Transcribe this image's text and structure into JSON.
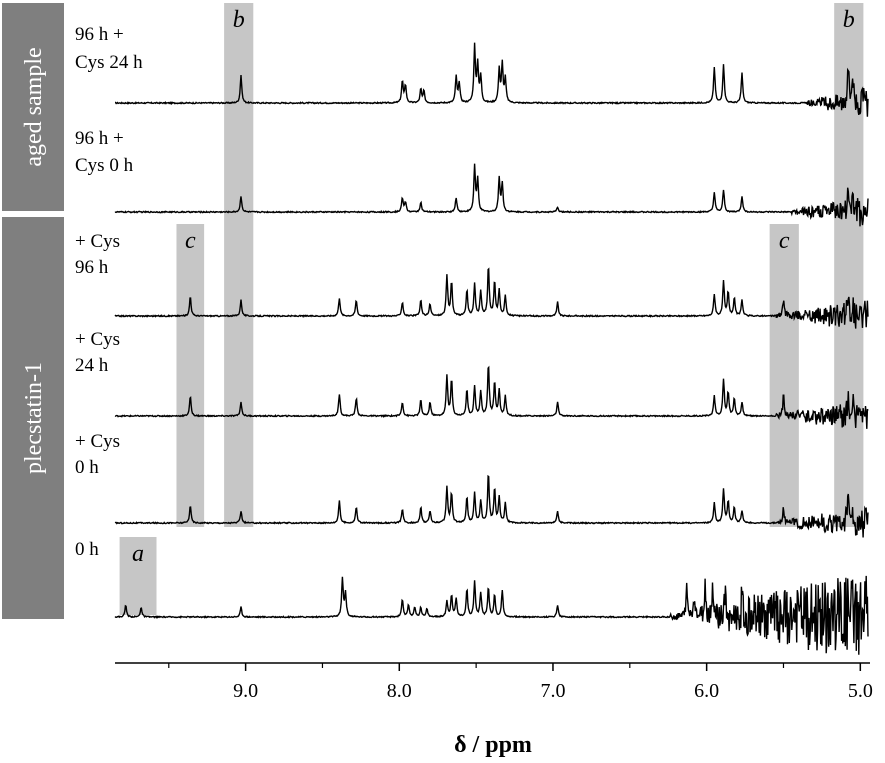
{
  "chart_data": {
    "type": "line",
    "xlabel": "δ / ppm",
    "xlim": [
      9.85,
      4.95
    ],
    "x_reversed": true,
    "x_ticks": [
      {
        "value": 9.0,
        "label": "9.0"
      },
      {
        "value": 8.0,
        "label": "8.0"
      },
      {
        "value": 7.0,
        "label": "7.0"
      },
      {
        "value": 6.0,
        "label": "6.0"
      },
      {
        "value": 5.0,
        "label": "5.0"
      }
    ],
    "groups": [
      {
        "label": "aged sample",
        "series": [
          "96 h + Cys 24 h",
          "96 h + Cys 0 h"
        ],
        "color": "#7f7f7f"
      },
      {
        "label": "plecstatin-1",
        "series": [
          "+ Cys 96 h",
          "+ Cys 24 h",
          "+ Cys 0 h",
          "0 h"
        ],
        "color": "#7f7f7f"
      }
    ],
    "highlights": [
      {
        "label": "a",
        "from": 9.82,
        "to": 9.58
      },
      {
        "label": "b",
        "from": 9.14,
        "to": 8.95
      },
      {
        "label": "b",
        "from": 5.17,
        "to": 4.98
      },
      {
        "label": "c",
        "from": 9.45,
        "to": 9.27
      },
      {
        "label": "c",
        "from": 5.59,
        "to": 5.4
      }
    ],
    "series": [
      {
        "name": "96 h + Cys 24 h",
        "label_lines": [
          "96 h +",
          "Cys 24 h"
        ],
        "noise_from": 5.35,
        "peaks": [
          [
            9.03,
            28
          ],
          [
            7.98,
            22
          ],
          [
            7.96,
            18
          ],
          [
            7.86,
            14
          ],
          [
            7.84,
            12
          ],
          [
            7.63,
            26
          ],
          [
            7.61,
            20
          ],
          [
            7.51,
            56
          ],
          [
            7.49,
            38
          ],
          [
            7.47,
            26
          ],
          [
            7.35,
            34
          ],
          [
            7.33,
            38
          ],
          [
            7.31,
            24
          ],
          [
            5.95,
            36
          ],
          [
            5.89,
            38
          ],
          [
            5.77,
            30
          ],
          [
            5.08,
            40
          ],
          [
            5.05,
            30
          ]
        ]
      },
      {
        "name": "96 h + Cys 0 h",
        "label_lines": [
          "96 h +",
          "Cys 0 h"
        ],
        "noise_from": 5.45,
        "peaks": [
          [
            9.03,
            16
          ],
          [
            7.98,
            14
          ],
          [
            7.96,
            10
          ],
          [
            7.86,
            10
          ],
          [
            7.63,
            14
          ],
          [
            7.51,
            46
          ],
          [
            7.49,
            32
          ],
          [
            7.35,
            34
          ],
          [
            7.33,
            28
          ],
          [
            6.97,
            5
          ],
          [
            5.95,
            20
          ],
          [
            5.89,
            22
          ],
          [
            5.77,
            16
          ],
          [
            5.08,
            22
          ],
          [
            5.05,
            16
          ]
        ]
      },
      {
        "name": "+ Cys 96 h",
        "label_lines": [
          "+ Cys",
          "96 h"
        ],
        "noise_from": 5.55,
        "peaks": [
          [
            9.36,
            20
          ],
          [
            9.03,
            16
          ],
          [
            8.39,
            18
          ],
          [
            8.28,
            16
          ],
          [
            7.98,
            14
          ],
          [
            7.86,
            16
          ],
          [
            7.8,
            12
          ],
          [
            7.69,
            40
          ],
          [
            7.66,
            34
          ],
          [
            7.56,
            26
          ],
          [
            7.51,
            32
          ],
          [
            7.47,
            24
          ],
          [
            7.42,
            50
          ],
          [
            7.38,
            34
          ],
          [
            7.35,
            26
          ],
          [
            7.31,
            20
          ],
          [
            6.97,
            14
          ],
          [
            5.95,
            22
          ],
          [
            5.89,
            34
          ],
          [
            5.86,
            24
          ],
          [
            5.82,
            18
          ],
          [
            5.77,
            16
          ],
          [
            5.5,
            16
          ],
          [
            5.08,
            20
          ],
          [
            5.05,
            14
          ]
        ]
      },
      {
        "name": "+ Cys 24 h",
        "label_lines": [
          "+ Cys",
          "24 h"
        ],
        "noise_from": 5.55,
        "peaks": [
          [
            9.36,
            20
          ],
          [
            9.03,
            14
          ],
          [
            8.39,
            22
          ],
          [
            8.28,
            18
          ],
          [
            7.98,
            14
          ],
          [
            7.86,
            16
          ],
          [
            7.8,
            14
          ],
          [
            7.69,
            40
          ],
          [
            7.66,
            36
          ],
          [
            7.56,
            26
          ],
          [
            7.51,
            30
          ],
          [
            7.47,
            24
          ],
          [
            7.42,
            52
          ],
          [
            7.38,
            34
          ],
          [
            7.35,
            26
          ],
          [
            7.31,
            20
          ],
          [
            6.97,
            14
          ],
          [
            5.95,
            20
          ],
          [
            5.89,
            36
          ],
          [
            5.86,
            24
          ],
          [
            5.82,
            18
          ],
          [
            5.77,
            14
          ],
          [
            5.5,
            20
          ],
          [
            5.08,
            22
          ],
          [
            5.05,
            14
          ]
        ]
      },
      {
        "name": "+ Cys 0 h",
        "label_lines": [
          "+ Cys",
          "0 h"
        ],
        "noise_from": 5.55,
        "peaks": [
          [
            9.36,
            18
          ],
          [
            9.03,
            12
          ],
          [
            8.39,
            22
          ],
          [
            8.28,
            16
          ],
          [
            7.98,
            14
          ],
          [
            7.86,
            16
          ],
          [
            7.8,
            12
          ],
          [
            7.69,
            36
          ],
          [
            7.66,
            30
          ],
          [
            7.56,
            26
          ],
          [
            7.51,
            30
          ],
          [
            7.47,
            22
          ],
          [
            7.42,
            50
          ],
          [
            7.38,
            34
          ],
          [
            7.35,
            26
          ],
          [
            7.31,
            20
          ],
          [
            6.97,
            12
          ],
          [
            5.95,
            20
          ],
          [
            5.89,
            34
          ],
          [
            5.86,
            22
          ],
          [
            5.82,
            16
          ],
          [
            5.77,
            12
          ],
          [
            5.5,
            16
          ],
          [
            5.08,
            20
          ],
          [
            5.05,
            14
          ]
        ]
      },
      {
        "name": "0 h",
        "label_lines": [
          "0 h"
        ],
        "noise_from": 6.25,
        "peaks": [
          [
            9.78,
            12
          ],
          [
            9.68,
            10
          ],
          [
            9.03,
            10
          ],
          [
            8.37,
            38
          ],
          [
            8.35,
            24
          ],
          [
            7.98,
            18
          ],
          [
            7.94,
            12
          ],
          [
            7.9,
            10
          ],
          [
            7.86,
            10
          ],
          [
            7.82,
            8
          ],
          [
            7.69,
            16
          ],
          [
            7.66,
            22
          ],
          [
            7.63,
            18
          ],
          [
            7.56,
            28
          ],
          [
            7.51,
            36
          ],
          [
            7.47,
            24
          ],
          [
            7.42,
            30
          ],
          [
            7.38,
            22
          ],
          [
            7.33,
            26
          ],
          [
            6.97,
            12
          ],
          [
            6.13,
            28
          ],
          [
            6.08,
            22
          ],
          [
            6.01,
            30
          ],
          [
            5.96,
            32
          ],
          [
            5.88,
            22
          ],
          [
            5.77,
            18
          ],
          [
            5.7,
            14
          ]
        ]
      }
    ]
  }
}
